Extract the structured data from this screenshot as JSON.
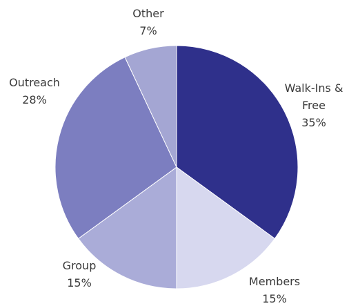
{
  "chart_data": {
    "type": "pie",
    "categories": [
      "Walk-Ins & Free",
      "Members",
      "Group",
      "Outreach",
      "Other"
    ],
    "values": [
      35,
      15,
      15,
      28,
      7
    ],
    "value_labels": [
      "35%",
      "15%",
      "15%",
      "28%",
      "7%"
    ],
    "colors": [
      "#2f308b",
      "#d7d8ef",
      "#aaacd8",
      "#7c7ec0",
      "#a4a6d3"
    ]
  }
}
